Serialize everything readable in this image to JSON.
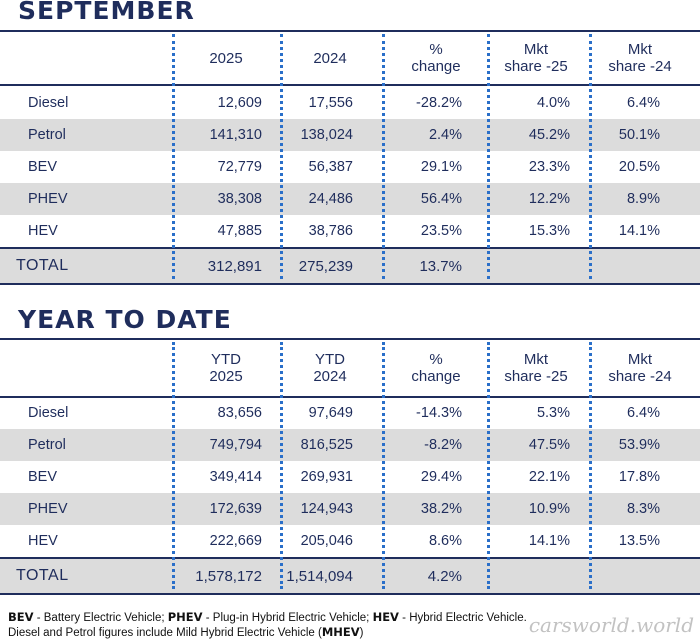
{
  "september": {
    "title": "SEPTEMBER",
    "headers": [
      {
        "lines": [
          "2025"
        ]
      },
      {
        "lines": [
          "2024"
        ]
      },
      {
        "lines": [
          "%",
          "change"
        ]
      },
      {
        "lines": [
          "Mkt",
          "share -25"
        ]
      },
      {
        "lines": [
          "Mkt",
          "share -24"
        ]
      }
    ],
    "rows": [
      {
        "label": "Diesel",
        "cells": [
          "12,609",
          "17,556",
          "-28.2%",
          "4.0%",
          "6.4%"
        ]
      },
      {
        "label": "Petrol",
        "cells": [
          "141,310",
          "138,024",
          "2.4%",
          "45.2%",
          "50.1%"
        ]
      },
      {
        "label": "BEV",
        "cells": [
          "72,779",
          "56,387",
          "29.1%",
          "23.3%",
          "20.5%"
        ]
      },
      {
        "label": "PHEV",
        "cells": [
          "38,308",
          "24,486",
          "56.4%",
          "12.2%",
          "8.9%"
        ]
      },
      {
        "label": "HEV",
        "cells": [
          "47,885",
          "38,786",
          "23.5%",
          "15.3%",
          "14.1%"
        ]
      }
    ],
    "total": {
      "label": "TOTAL",
      "cells": [
        "312,891",
        "275,239",
        "13.7%",
        "",
        ""
      ]
    }
  },
  "ytd": {
    "title": "YEAR TO DATE",
    "headers": [
      {
        "lines": [
          "YTD",
          "2025"
        ]
      },
      {
        "lines": [
          "YTD",
          "2024"
        ]
      },
      {
        "lines": [
          "%",
          "change"
        ]
      },
      {
        "lines": [
          "Mkt",
          "share -25"
        ]
      },
      {
        "lines": [
          "Mkt",
          "share -24"
        ]
      }
    ],
    "rows": [
      {
        "label": "Diesel",
        "cells": [
          "83,656",
          "97,649",
          "-14.3%",
          "5.3%",
          "6.4%"
        ]
      },
      {
        "label": "Petrol",
        "cells": [
          "749,794",
          "816,525",
          "-8.2%",
          "47.5%",
          "53.9%"
        ]
      },
      {
        "label": "BEV",
        "cells": [
          "349,414",
          "269,931",
          "29.4%",
          "22.1%",
          "17.8%"
        ]
      },
      {
        "label": "PHEV",
        "cells": [
          "172,639",
          "124,943",
          "38.2%",
          "10.9%",
          "8.3%"
        ]
      },
      {
        "label": "HEV",
        "cells": [
          "222,669",
          "205,046",
          "8.6%",
          "14.1%",
          "13.5%"
        ]
      }
    ],
    "total": {
      "label": "TOTAL",
      "cells": [
        "1,578,172",
        "1,514,094",
        "4.2%",
        "",
        ""
      ]
    }
  },
  "footer": {
    "line1": [
      {
        "bold": "BEV",
        "text": " - Battery Electric Vehicle; "
      },
      {
        "bold": "PHEV",
        "text": " - Plug-in Hybrid Electric Vehicle; "
      },
      {
        "bold": "HEV",
        "text": " - Hybrid Electric Vehicle."
      }
    ],
    "line2_text": "Diesel and Petrol figures include Mild Hybrid Electric Vehicle (",
    "line2_bold": "MHEV",
    "line2_end": ")"
  },
  "watermark": "carsworld.world",
  "colors": {
    "navy": "#1f2d5c",
    "dots": "#2a6fc9",
    "shade": "#dcdcdc"
  }
}
